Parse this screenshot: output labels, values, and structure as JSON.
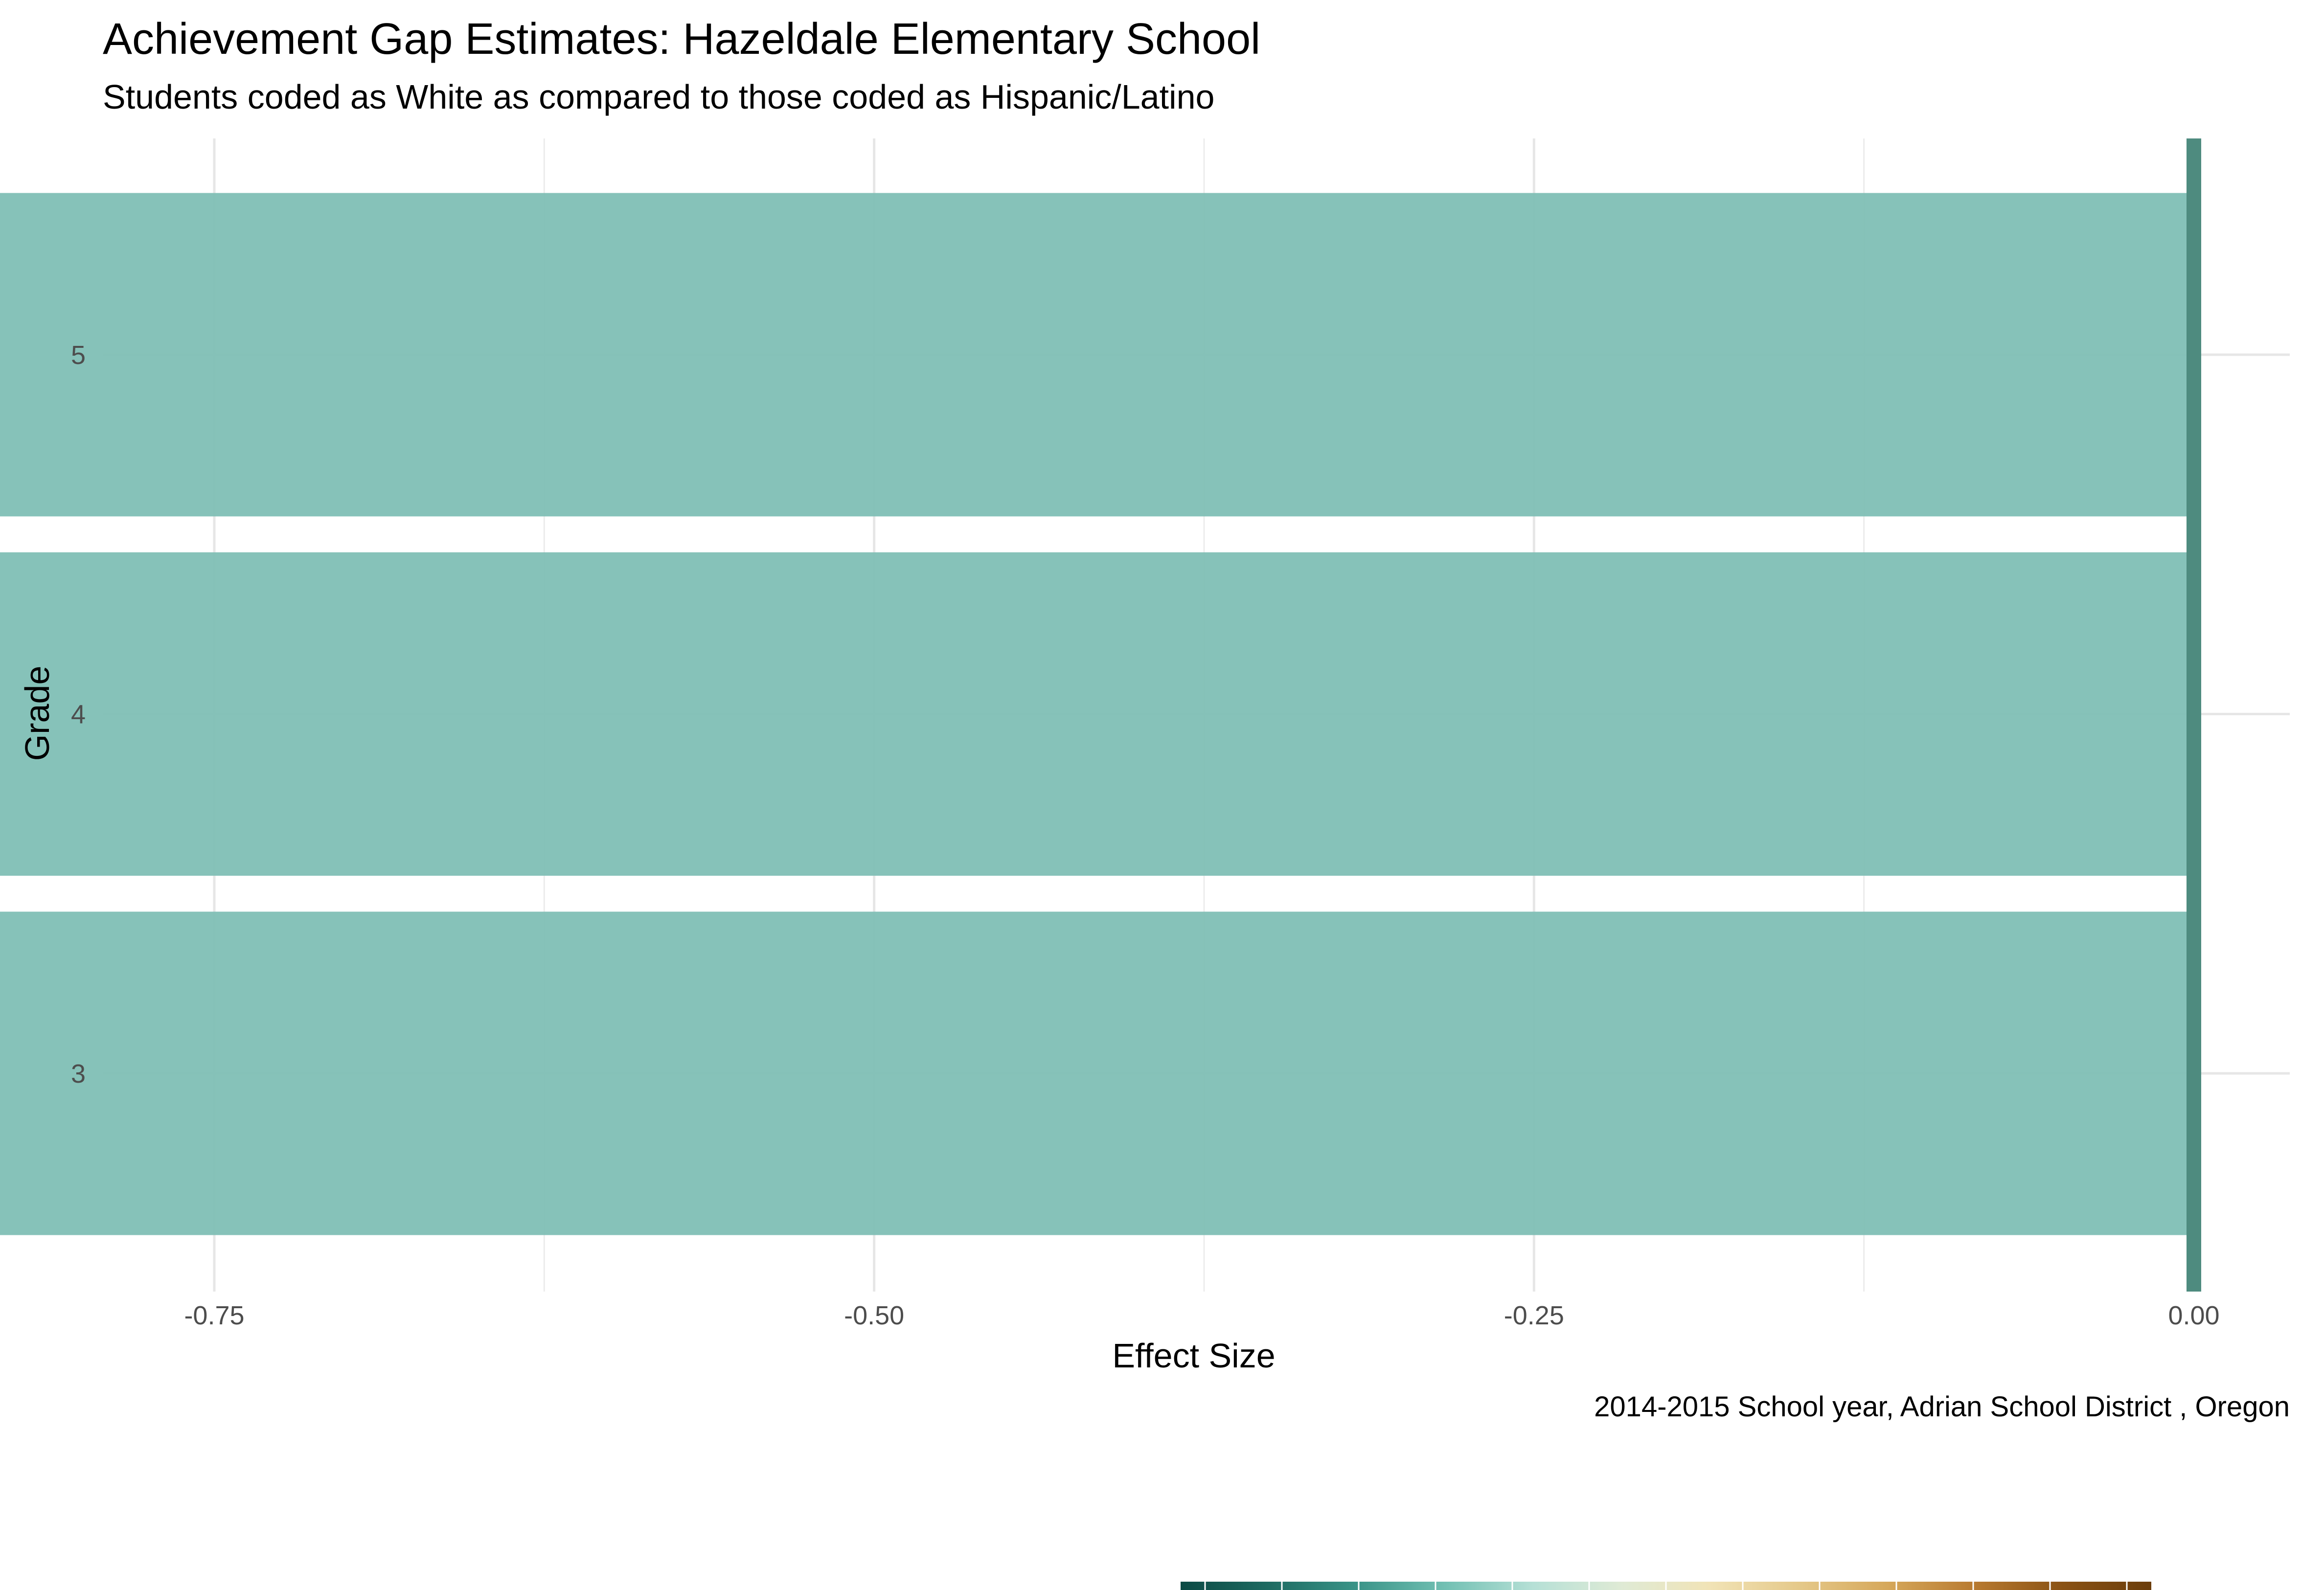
{
  "chart_data": {
    "type": "bar",
    "orientation": "horizontal",
    "title": "Achievement Gap Estimates: Hazeldale Elementary School",
    "subtitle": "Students coded as White as compared to those coded as Hispanic/Latino",
    "xlabel": "Effect Size",
    "ylabel": "Grade",
    "caption": "2014-2015 School year,  Adrian School District , Oregon",
    "categories": [
      "3",
      "4",
      "5"
    ],
    "values": [
      -0.877,
      -0.882,
      -0.856
    ],
    "xlim": [
      -0.885,
      0.045
    ],
    "x_ticks": [
      -0.75,
      -0.5,
      -0.25,
      0.0
    ],
    "x_tick_labels": [
      "-0.75",
      "-0.50",
      "-0.25",
      "0.00"
    ],
    "reference_line": 0.0,
    "grid": true,
    "colors": {
      "bar": "#80bfb5",
      "reference_line": "#4e8b7f",
      "grid": "#e6e6e6"
    },
    "legend": {
      "position": "bottom",
      "type": "colorbar",
      "palette": [
        "#0b4a44",
        "#1e6b62",
        "#3a9488",
        "#72c0b3",
        "#b6e0d6",
        "#dfead5",
        "#f1e3b6",
        "#e5c98a",
        "#d6a85b",
        "#b87a30",
        "#8a5214",
        "#6b3d0b"
      ]
    }
  }
}
